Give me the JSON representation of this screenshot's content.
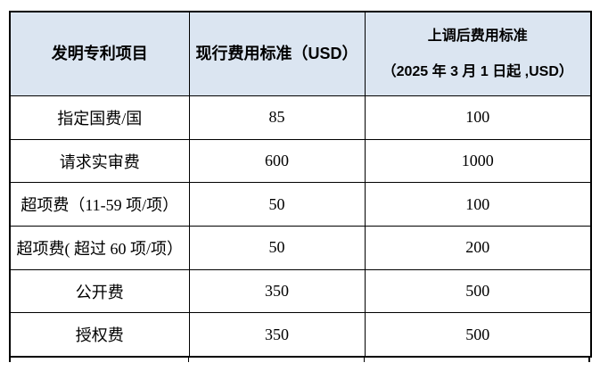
{
  "table": {
    "title": "patent-fee-schedule",
    "colors": {
      "header_bg": "#dbe5f1",
      "border": "#000000",
      "text": "#000000",
      "page_bg": "#ffffff"
    },
    "header": {
      "item_label": "发明专利项目",
      "current_label": "现行费用标准（USD）",
      "new_label_line1": "上调后费用标准",
      "new_label_line2": "（2025 年 3 月 1 日起 ,USD）"
    },
    "rows": [
      {
        "item": "指定国费/国",
        "current": "85",
        "new": "100"
      },
      {
        "item": "请求实审费",
        "current": "600",
        "new": "1000"
      },
      {
        "item": "超项费（11-59 项/项）",
        "current": "50",
        "new": "100"
      },
      {
        "item": "超项费( 超过 60 项/项）",
        "current": "50",
        "new": "200"
      },
      {
        "item": "公开费",
        "current": "350",
        "new": "500"
      },
      {
        "item": "授权费",
        "current": "350",
        "new": "500"
      }
    ]
  }
}
